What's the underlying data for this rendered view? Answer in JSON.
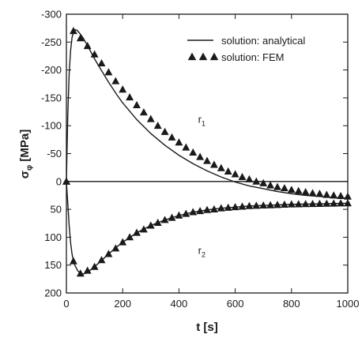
{
  "chart_data": {
    "type": "line",
    "xlabel": "t [s]",
    "ylabel_main": "σ",
    "ylabel_sub": "φ",
    "ylabel_unit": " [MPa]",
    "xlim": [
      0,
      1000
    ],
    "ylim": [
      -300,
      200
    ],
    "y_inverted": true,
    "grid": false,
    "legend_position": "top-right",
    "x_ticks": [
      0,
      200,
      400,
      600,
      800,
      1000
    ],
    "y_ticks": [
      -300,
      -250,
      -200,
      -150,
      -100,
      -50,
      0,
      50,
      100,
      150,
      200
    ],
    "y_tick_labels": [
      "-300",
      "-250",
      "-200",
      "-150",
      "-100",
      "-50",
      "0",
      "50",
      "100",
      "150",
      "200"
    ],
    "series": [
      {
        "name": "solution: analytical",
        "style": "line",
        "curve": "r1",
        "x": [
          0,
          5,
          10,
          15,
          20,
          25,
          30,
          35,
          40,
          50,
          60,
          70,
          80,
          100,
          120,
          150,
          180,
          200,
          250,
          300,
          350,
          400,
          450,
          500,
          550,
          600,
          650,
          700,
          750,
          800,
          850,
          900,
          950,
          1000
        ],
        "y": [
          0,
          -120,
          -195,
          -235,
          -258,
          -268,
          -272,
          -272,
          -270,
          -264,
          -257,
          -248,
          -239,
          -220,
          -203,
          -178,
          -155,
          -141,
          -111,
          -86,
          -65,
          -47,
          -32,
          -19,
          -8,
          1,
          8,
          13,
          18,
          22,
          25,
          27,
          29,
          30
        ]
      },
      {
        "name": "solution: FEM",
        "style": "marker",
        "curve": "r1",
        "x": [
          0,
          25,
          50,
          75,
          100,
          125,
          150,
          175,
          200,
          225,
          250,
          275,
          300,
          325,
          350,
          375,
          400,
          425,
          450,
          475,
          500,
          525,
          550,
          575,
          600,
          625,
          650,
          675,
          700,
          725,
          750,
          775,
          800,
          825,
          850,
          875,
          900,
          925,
          950,
          975,
          1000
        ],
        "y": [
          0,
          -270,
          -257,
          -243,
          -228,
          -212,
          -196,
          -180,
          -165,
          -151,
          -137,
          -124,
          -112,
          -100,
          -89,
          -79,
          -70,
          -61,
          -52,
          -44,
          -37,
          -30,
          -24,
          -18,
          -13,
          -8,
          -4,
          0,
          3,
          7,
          10,
          12,
          15,
          17,
          19,
          21,
          22,
          24,
          25,
          26,
          27
        ]
      },
      {
        "name": "",
        "style": "line",
        "curve": "r2",
        "x": [
          0,
          5,
          10,
          15,
          20,
          25,
          30,
          40,
          50,
          60,
          70,
          80,
          100,
          120,
          150,
          180,
          200,
          250,
          300,
          350,
          400,
          450,
          500,
          550,
          600,
          650,
          700,
          750,
          800,
          850,
          900,
          950,
          1000
        ],
        "y": [
          0,
          40,
          80,
          110,
          130,
          142,
          150,
          160,
          165,
          166,
          164,
          161,
          153,
          144,
          130,
          117,
          109,
          92,
          79,
          69,
          61,
          55,
          51,
          48,
          46,
          44,
          43,
          42,
          41,
          40.5,
          40,
          39.5,
          39
        ]
      },
      {
        "name": "",
        "style": "marker",
        "curve": "r2",
        "x": [
          0,
          25,
          50,
          75,
          100,
          125,
          150,
          175,
          200,
          225,
          250,
          275,
          300,
          325,
          350,
          375,
          400,
          425,
          450,
          475,
          500,
          525,
          550,
          575,
          600,
          625,
          650,
          675,
          700,
          725,
          750,
          775,
          800,
          825,
          850,
          875,
          900,
          925,
          950,
          975,
          1000
        ],
        "y": [
          0,
          143,
          165,
          160,
          153,
          141,
          130,
          120,
          109,
          100,
          92,
          86,
          79,
          74,
          69,
          65,
          61,
          58,
          55,
          53,
          51,
          50,
          48,
          47,
          46,
          45,
          44,
          43.5,
          43,
          42.5,
          42,
          41.5,
          41,
          40.8,
          40.5,
          40.3,
          40,
          39.8,
          39.5,
          39.2,
          39
        ]
      }
    ],
    "annotations": [
      {
        "text": "r",
        "sub": "1",
        "x": 468,
        "y": -105
      },
      {
        "text": "r",
        "sub": "2",
        "x": 468,
        "y": 130
      }
    ]
  }
}
